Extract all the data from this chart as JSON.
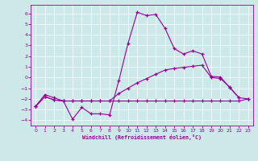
{
  "xlabel": "Windchill (Refroidissement éolien,°C)",
  "xlim": [
    -0.5,
    23.5
  ],
  "ylim": [
    -4.5,
    6.8
  ],
  "xticks": [
    0,
    1,
    2,
    3,
    4,
    5,
    6,
    7,
    8,
    9,
    10,
    11,
    12,
    13,
    14,
    15,
    16,
    17,
    18,
    19,
    20,
    21,
    22,
    23
  ],
  "yticks": [
    -4,
    -3,
    -2,
    -1,
    0,
    1,
    2,
    3,
    4,
    5,
    6
  ],
  "bg_color": "#cce8e8",
  "line_color": "#990099",
  "line1_x": [
    0,
    1,
    2,
    3,
    4,
    5,
    6,
    7,
    8,
    9,
    10,
    11,
    12,
    13,
    14,
    15,
    16,
    17,
    18,
    19,
    20,
    21,
    22
  ],
  "line1_y": [
    -2.7,
    -1.6,
    -1.9,
    -2.2,
    -3.9,
    -2.8,
    -3.4,
    -3.4,
    -3.5,
    -0.3,
    3.2,
    6.1,
    5.8,
    5.9,
    4.6,
    2.7,
    2.2,
    2.5,
    2.2,
    0.1,
    0.05,
    -0.95,
    -1.9
  ],
  "line2_x": [
    0,
    1,
    2,
    3,
    4,
    5,
    6,
    7,
    8,
    9,
    10,
    11,
    12,
    13,
    14,
    15,
    16,
    17,
    18,
    19,
    20,
    21,
    22,
    23
  ],
  "line2_y": [
    -2.7,
    -1.8,
    -2.1,
    -2.2,
    -2.2,
    -2.2,
    -2.2,
    -2.2,
    -2.2,
    -2.2,
    -2.2,
    -2.2,
    -2.2,
    -2.2,
    -2.2,
    -2.2,
    -2.2,
    -2.2,
    -2.2,
    -2.2,
    -2.2,
    -2.2,
    -2.2,
    -2.0
  ],
  "line3_x": [
    0,
    1,
    2,
    3,
    4,
    5,
    6,
    7,
    8,
    9,
    10,
    11,
    12,
    13,
    14,
    15,
    16,
    17,
    18,
    19,
    20,
    21,
    22,
    23
  ],
  "line3_y": [
    -2.7,
    -1.8,
    -2.1,
    -2.2,
    -2.2,
    -2.2,
    -2.2,
    -2.2,
    -2.2,
    -1.5,
    -1.0,
    -0.5,
    -0.1,
    0.3,
    0.7,
    0.85,
    0.95,
    1.05,
    1.15,
    0.0,
    -0.1,
    -0.9,
    -1.9,
    -2.0
  ]
}
